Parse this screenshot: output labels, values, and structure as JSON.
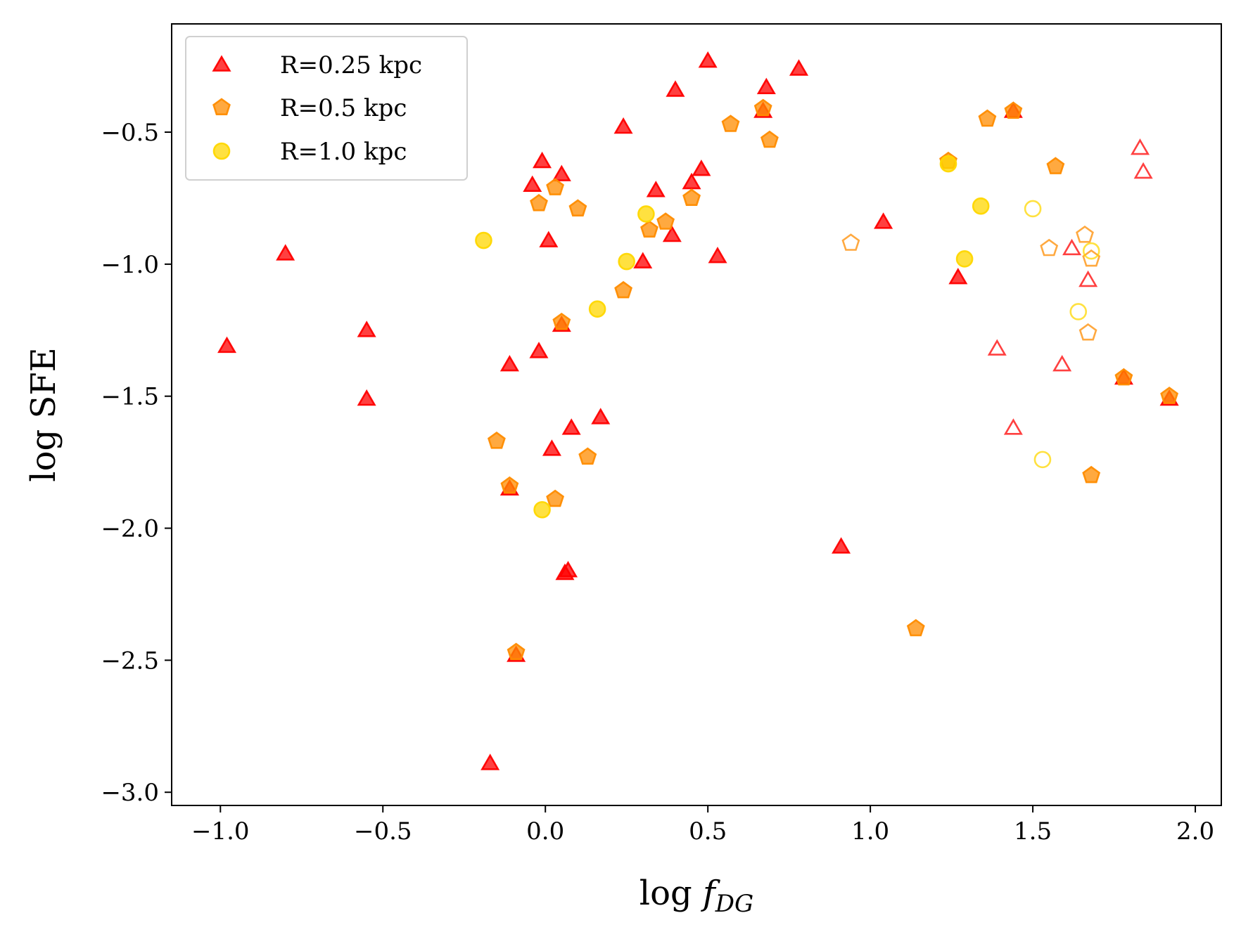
{
  "chart_data": {
    "type": "scatter",
    "title": "",
    "xlabel": "log ",
    "xlabel_symbol": "f",
    "xlabel_subscript": "DG",
    "ylabel": "log SFE",
    "xlim": [
      -1.15,
      2.08
    ],
    "ylim": [
      -3.05,
      -0.09
    ],
    "xticks": [
      -1.0,
      -0.5,
      0.0,
      0.5,
      1.0,
      1.5,
      2.0
    ],
    "xtick_labels": [
      "−1.0",
      "−0.5",
      "0.0",
      "0.5",
      "1.0",
      "1.5",
      "2.0"
    ],
    "yticks": [
      -0.5,
      -1.0,
      -1.5,
      -2.0,
      -2.5,
      -3.0
    ],
    "ytick_labels": [
      "−0.5",
      "−1.0",
      "−1.5",
      "−2.0",
      "−2.5",
      "−3.0"
    ],
    "grid": false,
    "legend_position": "top-left",
    "series": [
      {
        "name": "R=0.25 kpc",
        "marker": "triangle",
        "color": "#ff0000",
        "filled": [
          [
            -0.98,
            -1.31
          ],
          [
            -0.8,
            -0.96
          ],
          [
            -0.55,
            -1.25
          ],
          [
            -0.55,
            -1.51
          ],
          [
            -0.17,
            -2.89
          ],
          [
            -0.11,
            -1.38
          ],
          [
            -0.11,
            -1.85
          ],
          [
            -0.09,
            -2.48
          ],
          [
            -0.04,
            -0.7
          ],
          [
            -0.02,
            -1.33
          ],
          [
            -0.01,
            -0.61
          ],
          [
            0.01,
            -0.91
          ],
          [
            0.02,
            -1.7
          ],
          [
            0.05,
            -0.66
          ],
          [
            0.05,
            -1.23
          ],
          [
            0.06,
            -2.17
          ],
          [
            0.07,
            -2.16
          ],
          [
            0.08,
            -1.62
          ],
          [
            0.17,
            -1.58
          ],
          [
            0.24,
            -0.48
          ],
          [
            0.3,
            -0.99
          ],
          [
            0.34,
            -0.72
          ],
          [
            0.39,
            -0.89
          ],
          [
            0.4,
            -0.34
          ],
          [
            0.45,
            -0.69
          ],
          [
            0.48,
            -0.64
          ],
          [
            0.5,
            -0.23
          ],
          [
            0.53,
            -0.97
          ],
          [
            0.67,
            -0.42
          ],
          [
            0.68,
            -0.33
          ],
          [
            0.78,
            -0.26
          ],
          [
            0.91,
            -2.07
          ],
          [
            1.04,
            -0.84
          ],
          [
            1.27,
            -1.05
          ],
          [
            1.44,
            -0.42
          ],
          [
            1.78,
            -1.43
          ],
          [
            1.92,
            -1.51
          ]
        ],
        "open": [
          [
            1.39,
            -1.32
          ],
          [
            1.44,
            -1.62
          ],
          [
            1.59,
            -1.38
          ],
          [
            1.62,
            -0.94
          ],
          [
            1.67,
            -1.06
          ],
          [
            1.83,
            -0.56
          ],
          [
            1.84,
            -0.65
          ]
        ]
      },
      {
        "name": "R=0.5 kpc",
        "marker": "pentagon",
        "color": "#ff8c00",
        "filled": [
          [
            -0.15,
            -1.67
          ],
          [
            -0.11,
            -1.84
          ],
          [
            -0.09,
            -2.47
          ],
          [
            -0.02,
            -0.77
          ],
          [
            0.03,
            -0.71
          ],
          [
            0.03,
            -1.89
          ],
          [
            0.05,
            -1.22
          ],
          [
            0.1,
            -0.79
          ],
          [
            0.13,
            -1.73
          ],
          [
            0.24,
            -1.1
          ],
          [
            0.32,
            -0.87
          ],
          [
            0.37,
            -0.84
          ],
          [
            0.45,
            -0.75
          ],
          [
            0.57,
            -0.47
          ],
          [
            0.67,
            -0.41
          ],
          [
            0.69,
            -0.53
          ],
          [
            1.14,
            -2.38
          ],
          [
            1.24,
            -0.61
          ],
          [
            1.36,
            -0.45
          ],
          [
            1.44,
            -0.42
          ],
          [
            1.57,
            -0.63
          ],
          [
            1.68,
            -1.8
          ],
          [
            1.78,
            -1.43
          ],
          [
            1.92,
            -1.5
          ]
        ],
        "open": [
          [
            0.94,
            -0.92
          ],
          [
            1.55,
            -0.94
          ],
          [
            1.66,
            -0.89
          ],
          [
            1.67,
            -1.26
          ],
          [
            1.68,
            -0.98
          ]
        ]
      },
      {
        "name": "R=1.0 kpc",
        "marker": "circle",
        "color": "#ffd700",
        "filled": [
          [
            -0.19,
            -0.91
          ],
          [
            -0.01,
            -1.93
          ],
          [
            0.16,
            -1.17
          ],
          [
            0.25,
            -0.99
          ],
          [
            0.31,
            -0.81
          ],
          [
            1.24,
            -0.62
          ],
          [
            1.34,
            -0.78
          ],
          [
            1.29,
            -0.98
          ]
        ],
        "open": [
          [
            1.5,
            -0.79
          ],
          [
            1.53,
            -1.74
          ],
          [
            1.64,
            -1.18
          ],
          [
            1.68,
            -0.95
          ]
        ]
      }
    ]
  }
}
